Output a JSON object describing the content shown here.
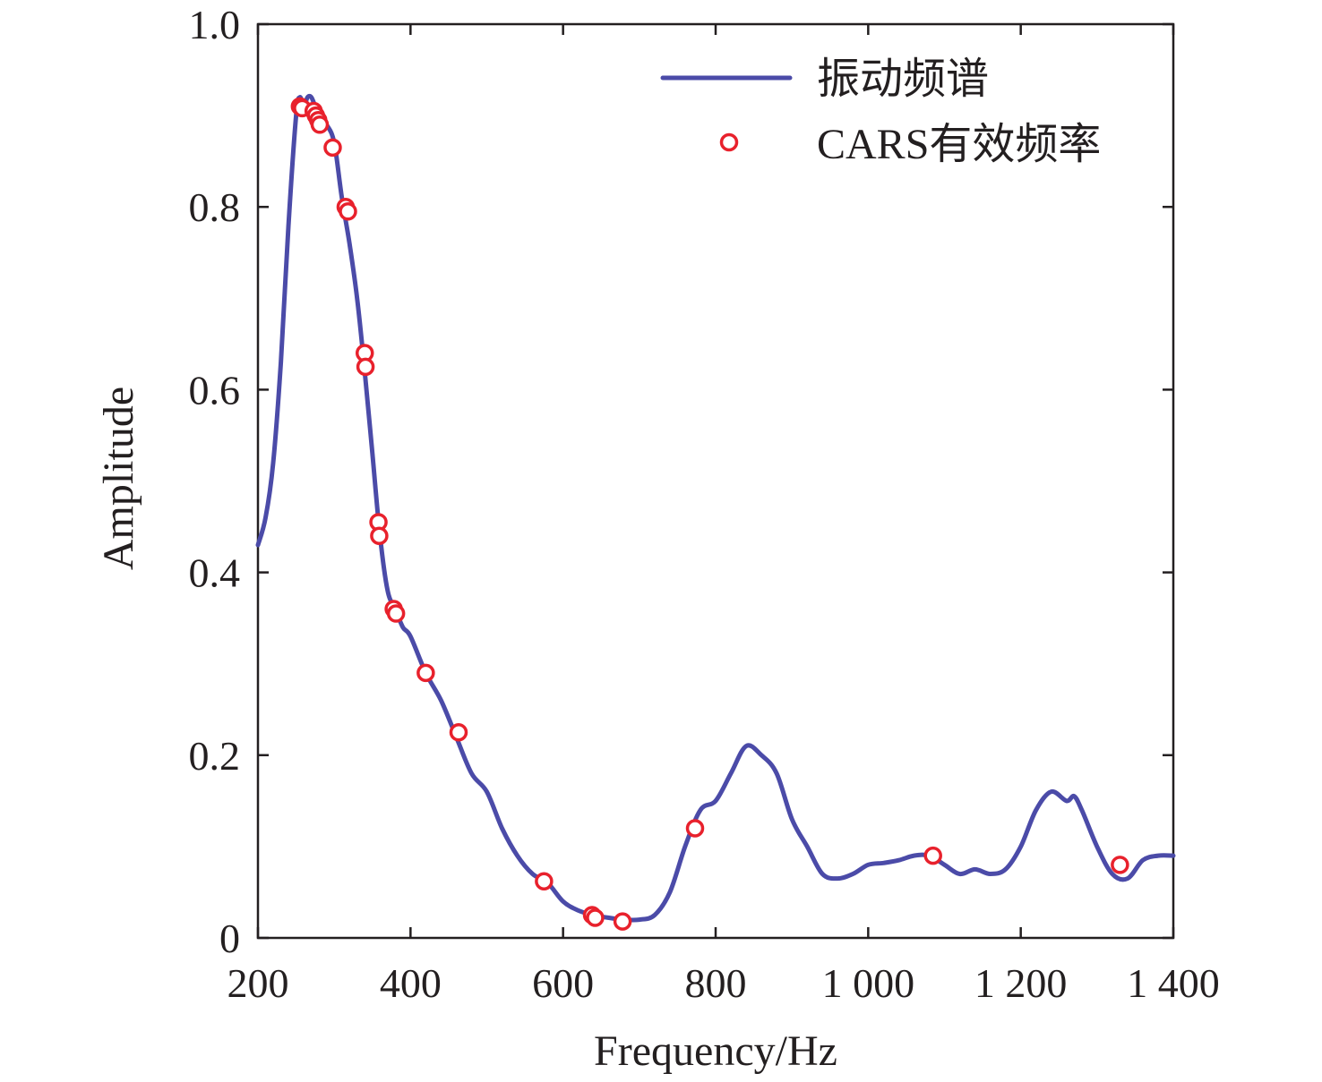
{
  "chart_data": {
    "type": "line",
    "title": "",
    "xlabel": "Frequency/Hz",
    "ylabel": "Amplitude",
    "xlim": [
      200,
      1400
    ],
    "ylim": [
      0,
      1.0
    ],
    "x_ticks": [
      200,
      400,
      600,
      800,
      1000,
      1200,
      1400
    ],
    "x_tick_labels": [
      "200",
      "400",
      "600",
      "800",
      "1 000",
      "1 200",
      "1 400"
    ],
    "y_ticks": [
      0,
      0.2,
      0.4,
      0.6,
      0.8,
      1.0
    ],
    "y_tick_labels": [
      "0",
      "0.2",
      "0.4",
      "0.6",
      "0.8",
      "1.0"
    ],
    "grid": false,
    "legend_position": "top-right",
    "series": [
      {
        "name": "振动频谱",
        "kind": "line",
        "color": "#4b4ba8",
        "x": [
          200,
          210,
          220,
          230,
          240,
          250,
          255,
          260,
          265,
          270,
          275,
          280,
          290,
          300,
          310,
          320,
          330,
          340,
          350,
          360,
          370,
          380,
          390,
          400,
          420,
          440,
          460,
          480,
          500,
          520,
          540,
          560,
          580,
          600,
          620,
          640,
          660,
          680,
          700,
          720,
          740,
          760,
          780,
          800,
          820,
          840,
          860,
          880,
          900,
          920,
          940,
          960,
          980,
          1000,
          1020,
          1040,
          1060,
          1080,
          1100,
          1120,
          1140,
          1160,
          1180,
          1200,
          1220,
          1240,
          1260,
          1270,
          1280,
          1300,
          1320,
          1340,
          1360,
          1380,
          1400
        ],
        "y": [
          0.43,
          0.46,
          0.52,
          0.63,
          0.78,
          0.9,
          0.92,
          0.91,
          0.92,
          0.92,
          0.91,
          0.9,
          0.89,
          0.87,
          0.81,
          0.76,
          0.7,
          0.62,
          0.53,
          0.44,
          0.38,
          0.36,
          0.34,
          0.33,
          0.29,
          0.26,
          0.22,
          0.18,
          0.16,
          0.12,
          0.09,
          0.07,
          0.06,
          0.04,
          0.03,
          0.025,
          0.022,
          0.02,
          0.02,
          0.025,
          0.05,
          0.1,
          0.14,
          0.15,
          0.18,
          0.21,
          0.2,
          0.18,
          0.13,
          0.1,
          0.07,
          0.065,
          0.07,
          0.08,
          0.082,
          0.085,
          0.09,
          0.09,
          0.08,
          0.07,
          0.075,
          0.07,
          0.075,
          0.1,
          0.14,
          0.16,
          0.15,
          0.155,
          0.14,
          0.1,
          0.07,
          0.065,
          0.085,
          0.09,
          0.09
        ]
      },
      {
        "name": "CARS有效频率",
        "kind": "scatter",
        "color": "#e8212c",
        "x": [
          255,
          258,
          273,
          276,
          279,
          281,
          298,
          315,
          318,
          340,
          341,
          358,
          359,
          378,
          381,
          420,
          463,
          575,
          638,
          642,
          678,
          773,
          1085,
          1330
        ],
        "y": [
          0.91,
          0.908,
          0.905,
          0.9,
          0.895,
          0.89,
          0.865,
          0.8,
          0.795,
          0.64,
          0.625,
          0.455,
          0.44,
          0.36,
          0.355,
          0.29,
          0.225,
          0.062,
          0.025,
          0.022,
          0.018,
          0.12,
          0.09,
          0.08
        ]
      }
    ]
  }
}
